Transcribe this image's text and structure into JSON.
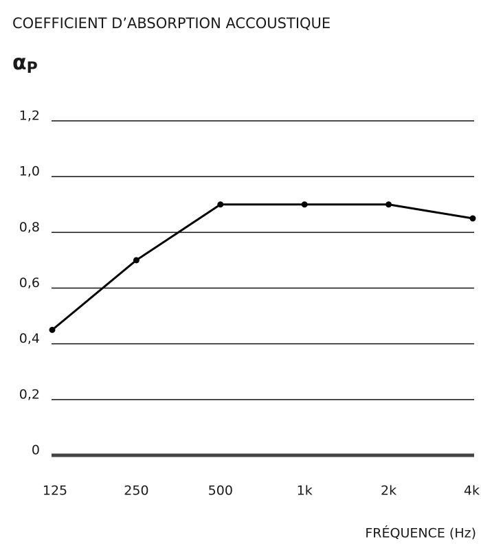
{
  "chart_data": {
    "type": "line",
    "title": "COEFFICIENT D’ABSORPTION ACCOUSTIQUE",
    "ylabel": "α",
    "ylabel_subscript": "P",
    "xlabel": "FRÉQUENCE (Hz)",
    "categories": [
      "125",
      "250",
      "500",
      "1k",
      "2k",
      "4k"
    ],
    "values": [
      0.45,
      0.7,
      0.9,
      0.9,
      0.9,
      0.85
    ],
    "color": "#000000",
    "ylim": [
      0,
      1.2
    ],
    "yticks": [
      0,
      {
        "value": 0.2,
        "label": "0,2"
      },
      {
        "value": 0.4,
        "label": "0,4"
      },
      {
        "value": 0.6,
        "label": "0,6"
      },
      {
        "value": 0.8,
        "label": "0,8"
      },
      {
        "value": 1.0,
        "label": "1,0"
      },
      {
        "value": 1.2,
        "label": "1,2"
      }
    ],
    "grid": true
  }
}
